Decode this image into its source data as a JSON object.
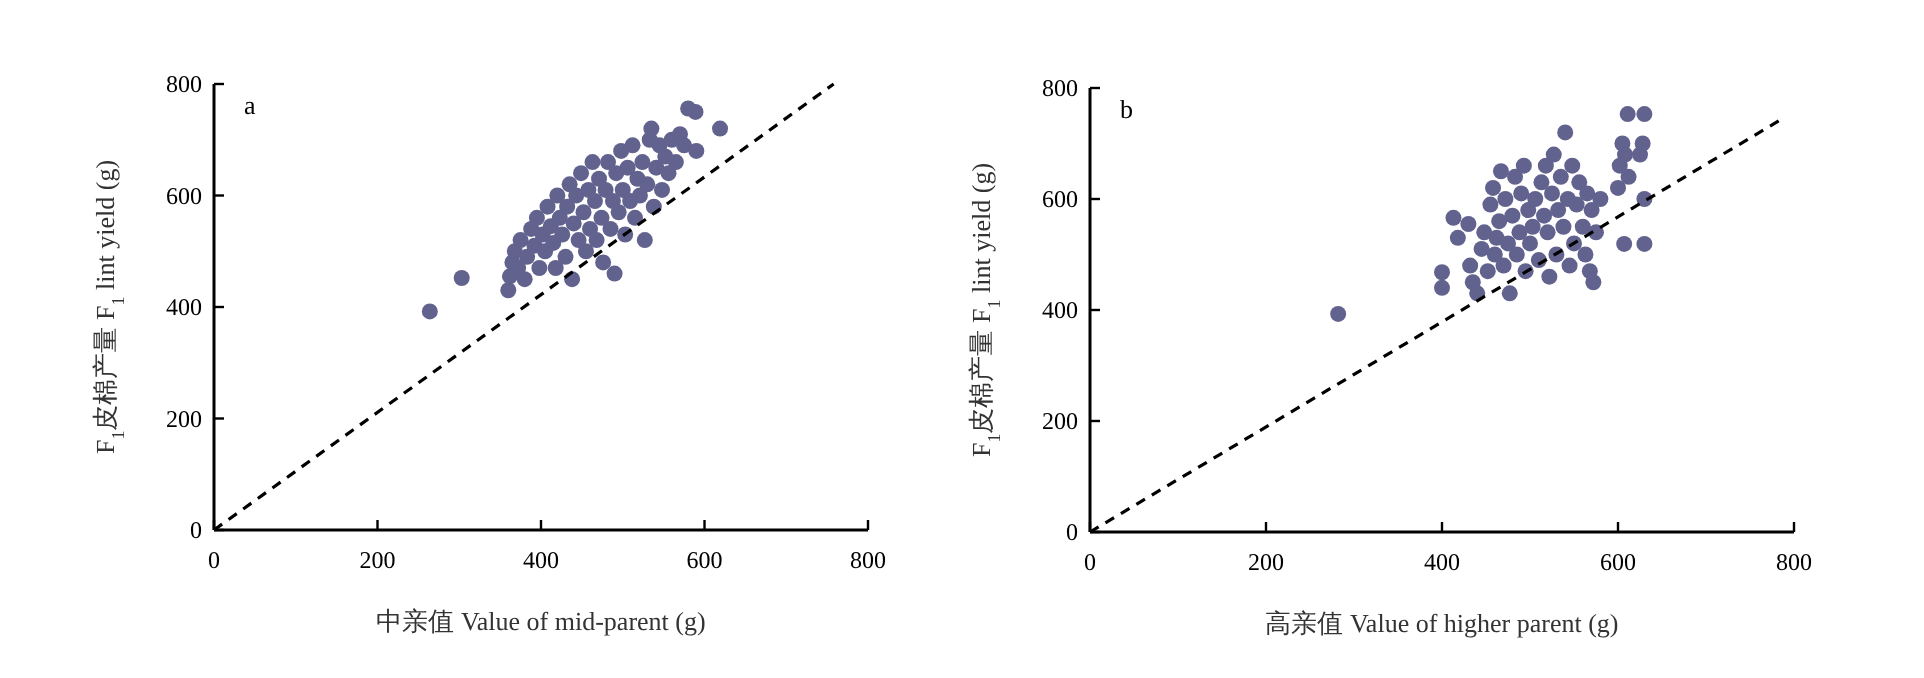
{
  "chart_data": [
    {
      "type": "scatter",
      "title": "a",
      "xlabel": "中亲值 Value of mid-parent (g)",
      "ylabel": "F$_{1}$皮棉产量 F$_{1}$ lint yield (g)",
      "xlim": [
        0,
        800
      ],
      "ylim": [
        0,
        800
      ],
      "xticks": [
        0,
        200,
        400,
        600,
        800
      ],
      "yticks": [
        0,
        200,
        400,
        600,
        800
      ],
      "series": [
        {
          "color": "#62628f",
          "marker": "circle",
          "x": [
            264,
            303,
            360,
            362,
            365,
            368,
            372,
            375,
            380,
            383,
            388,
            392,
            395,
            398,
            402,
            405,
            408,
            412,
            415,
            418,
            420,
            423,
            426,
            430,
            432,
            435,
            438,
            440,
            443,
            446,
            449,
            452,
            455,
            458,
            460,
            463,
            466,
            468,
            471,
            474,
            476,
            479,
            482,
            485,
            488,
            490,
            492,
            495,
            498,
            500,
            503,
            506,
            509,
            512,
            515,
            518,
            521,
            524,
            527,
            530,
            533,
            535,
            538,
            541,
            545,
            548,
            552,
            556,
            560,
            565,
            570,
            575,
            580,
            589,
            590,
            619
          ],
          "values": [
            392,
            452,
            430,
            455,
            480,
            500,
            470,
            520,
            450,
            490,
            540,
            510,
            560,
            470,
            530,
            500,
            580,
            545,
            515,
            470,
            600,
            560,
            530,
            490,
            580,
            620,
            450,
            550,
            600,
            520,
            640,
            570,
            500,
            610,
            540,
            660,
            590,
            520,
            630,
            560,
            480,
            610,
            660,
            540,
            590,
            460,
            640,
            570,
            680,
            610,
            530,
            650,
            590,
            690,
            560,
            630,
            600,
            660,
            520,
            620,
            700,
            720,
            580,
            650,
            690,
            610,
            670,
            640,
            700,
            660,
            710,
            690,
            756,
            750,
            680,
            720
          ]
        },
        {
          "type": "line",
          "color": "#000000",
          "line_style": "dashed",
          "marker": "none",
          "x": [
            0,
            758
          ],
          "values": [
            0,
            800
          ]
        }
      ]
    },
    {
      "type": "scatter",
      "title": "b",
      "xlabel": "高亲值 Value of higher parent (g)",
      "ylabel": "F$_{1}$皮棉产量 F$_{1}$ lint yield (g)",
      "xlim": [
        0,
        800
      ],
      "ylim": [
        0,
        800
      ],
      "xticks": [
        0,
        200,
        400,
        600,
        800
      ],
      "yticks": [
        0,
        200,
        400,
        600,
        800
      ],
      "series": [
        {
          "color": "#62628f",
          "marker": "circle",
          "x": [
            282,
            400,
            400,
            413,
            418,
            430,
            432,
            435,
            440,
            445,
            448,
            452,
            455,
            458,
            460,
            462,
            465,
            467,
            470,
            472,
            475,
            477,
            480,
            483,
            485,
            488,
            490,
            493,
            495,
            498,
            500,
            503,
            506,
            510,
            513,
            516,
            518,
            520,
            522,
            525,
            527,
            530,
            532,
            535,
            538,
            540,
            543,
            545,
            548,
            550,
            553,
            556,
            560,
            563,
            565,
            568,
            570,
            572,
            575,
            580,
            600,
            602,
            605,
            607,
            608,
            611,
            612,
            625,
            628,
            630,
            630,
            630
          ],
          "values": [
            393,
            440,
            468,
            566,
            530,
            555,
            480,
            450,
            430,
            510,
            540,
            470,
            590,
            620,
            500,
            530,
            560,
            650,
            480,
            600,
            520,
            430,
            570,
            640,
            500,
            540,
            610,
            660,
            470,
            580,
            520,
            550,
            600,
            490,
            630,
            570,
            660,
            540,
            460,
            610,
            680,
            500,
            580,
            640,
            550,
            720,
            600,
            480,
            660,
            520,
            590,
            630,
            550,
            500,
            610,
            470,
            580,
            450,
            540,
            600,
            620,
            660,
            700,
            519,
            680,
            753,
            640,
            680,
            700,
            753,
            519,
            600
          ]
        },
        {
          "type": "line",
          "color": "#000000",
          "line_style": "dashed",
          "marker": "none",
          "x": [
            0,
            784
          ],
          "values": [
            0,
            742
          ]
        }
      ]
    }
  ]
}
